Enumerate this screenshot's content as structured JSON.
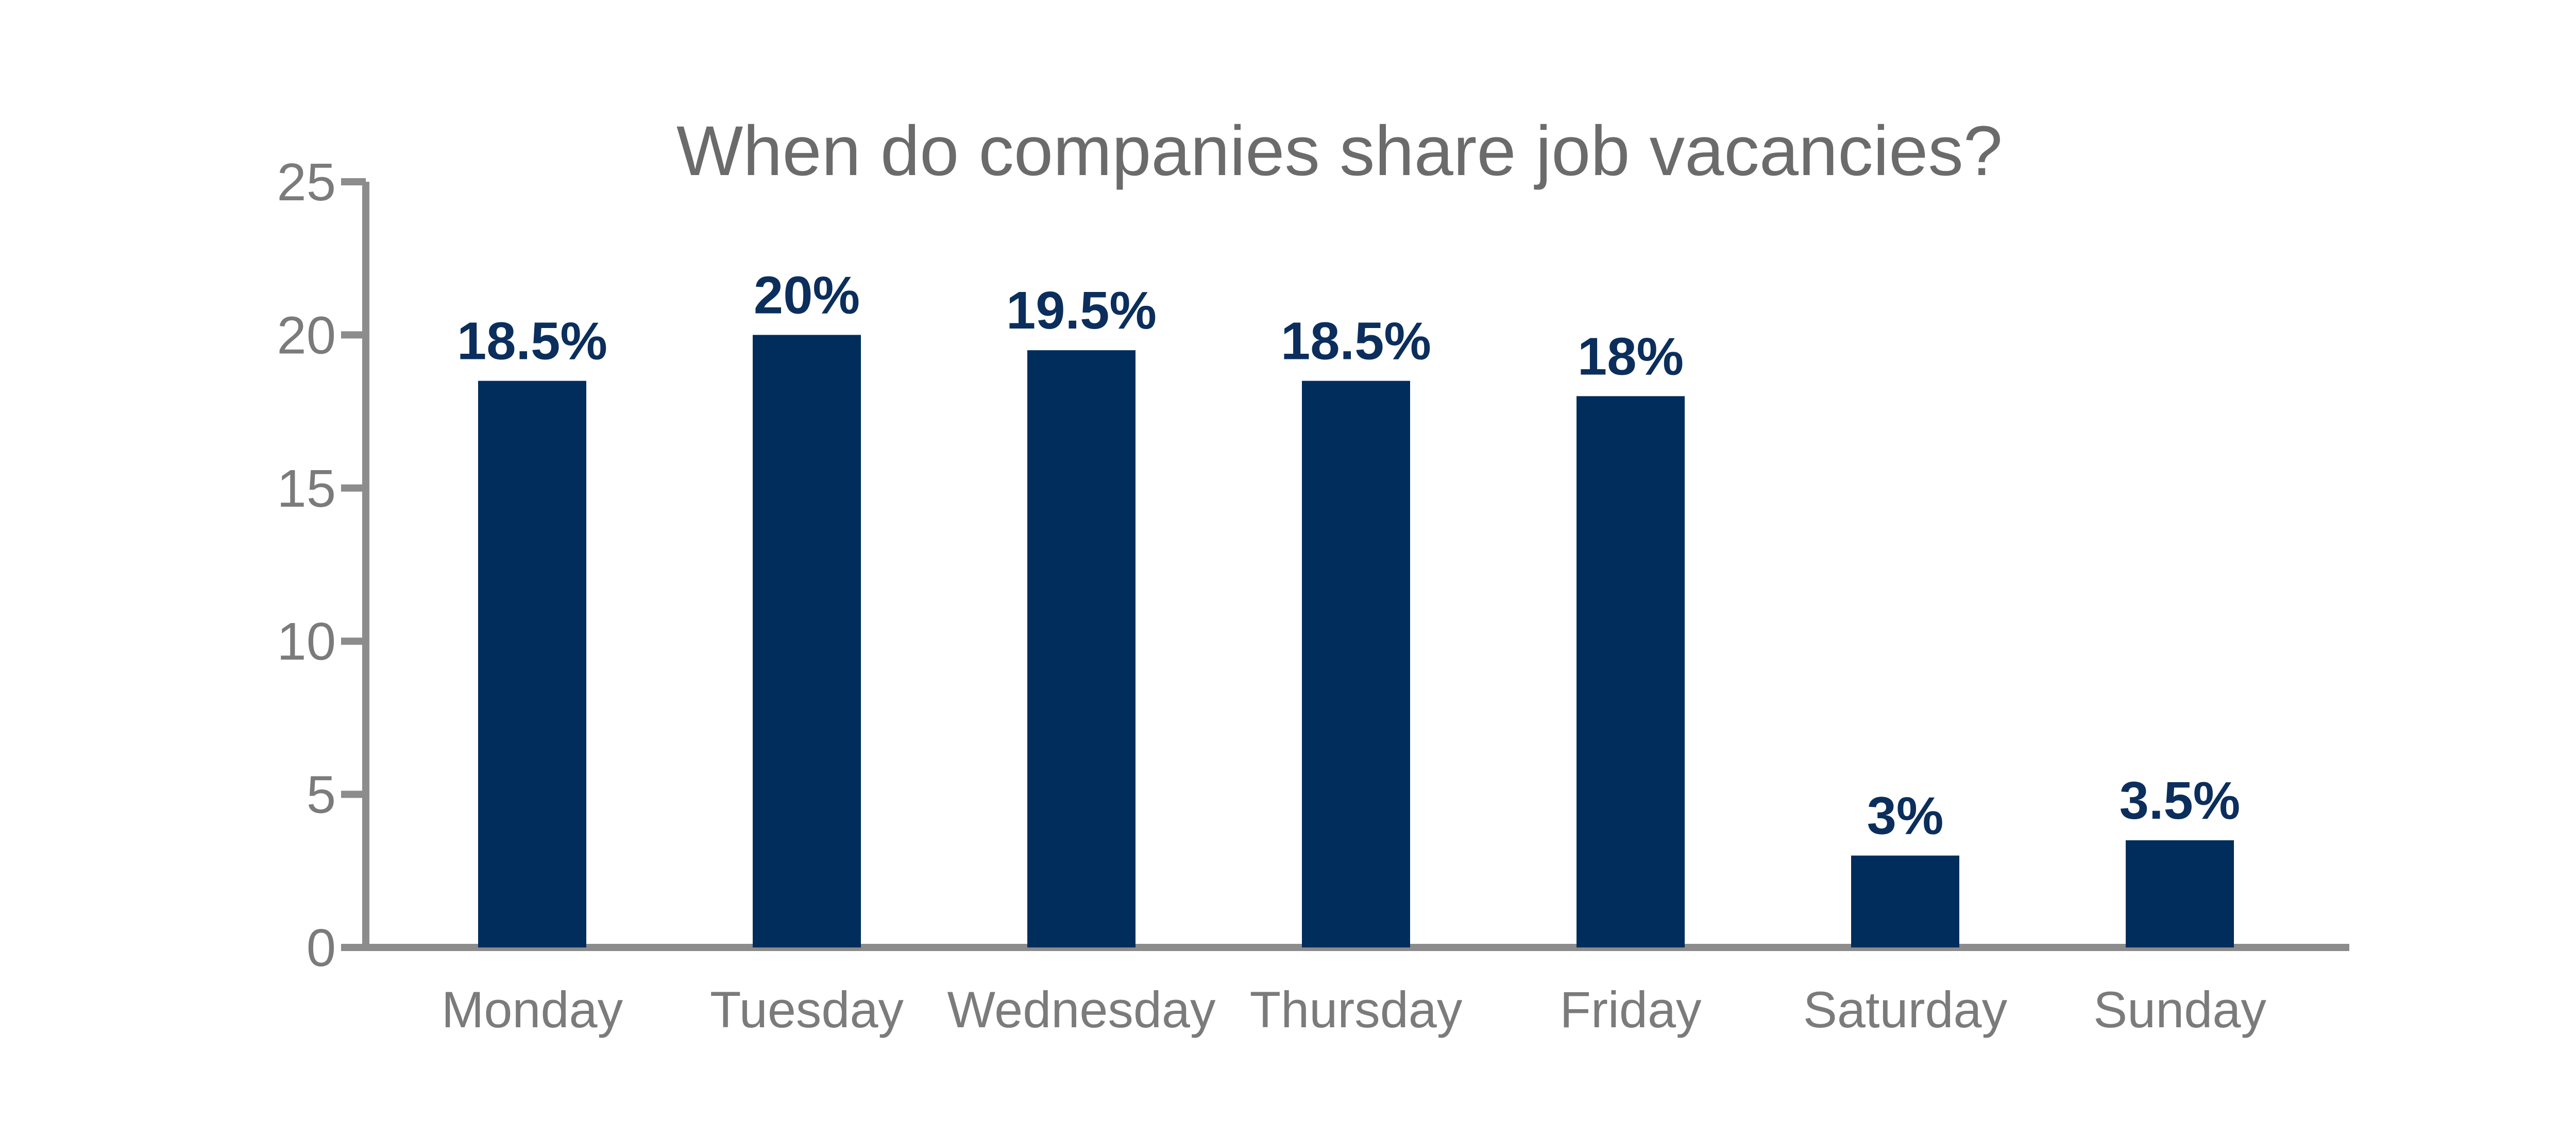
{
  "chart_data": {
    "type": "bar",
    "title": "When do companies share job vacancies?",
    "xlabel": "",
    "ylabel": "",
    "categories": [
      "Monday",
      "Tuesday",
      "Wednesday",
      "Thursday",
      "Friday",
      "Saturday",
      "Sunday"
    ],
    "values": [
      18.5,
      20,
      19.5,
      18.5,
      18,
      3,
      3.5
    ],
    "data_labels": [
      "18.5%",
      "20%",
      "19.5%",
      "18.5%",
      "18%",
      "3%",
      "3.5%"
    ],
    "ylim": [
      0,
      25
    ],
    "yticks": [
      0,
      5,
      10,
      15,
      20,
      25
    ],
    "grid": false,
    "legend": "none"
  },
  "colors": {
    "bar": "#002d5b",
    "axis": "#8c8c8c",
    "title": "#6b6b6b",
    "tick_label": "#7b7b7b",
    "data_label": "#0b2e5c"
  }
}
